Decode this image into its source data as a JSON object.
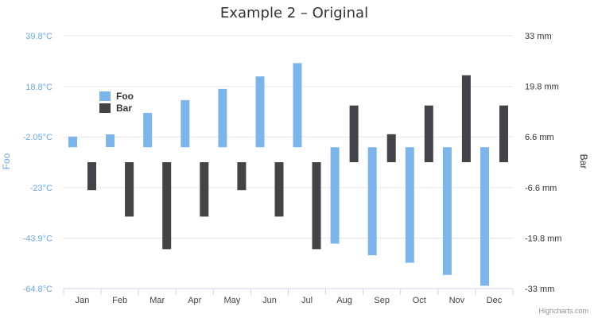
{
  "chart_data": {
    "type": "bar",
    "title": "Example 2 – Original",
    "categories": [
      "Jan",
      "Feb",
      "Mar",
      "Apr",
      "May",
      "Jun",
      "Jul",
      "Aug",
      "Sep",
      "Oct",
      "Nov",
      "Dec"
    ],
    "y_left": {
      "title": "Foo",
      "ticks": [
        "-64.8°C",
        "-43.9°C",
        "-23°C",
        "-2.05°C",
        "18.8°C",
        "39.8°C"
      ],
      "tick_values": [
        -64.8,
        -43.9,
        -23,
        -2.05,
        18.8,
        39.8
      ],
      "range": [
        -64.8,
        39.8
      ],
      "color": "#7cb5ec"
    },
    "y_right": {
      "title": "Bar",
      "ticks": [
        "-33 mm",
        "-19.8 mm",
        "-6.6 mm",
        "6.6 mm",
        "19.8 mm",
        "33 mm"
      ],
      "tick_values": [
        -33,
        -19.8,
        -6.6,
        6.6,
        19.8,
        33
      ],
      "range": [
        -33,
        33
      ],
      "color": "#434348"
    },
    "series": [
      {
        "name": "Foo",
        "axis": "left",
        "color": "#7cb5ec",
        "ranges": [
          [
            -6.3,
            -1.9
          ],
          [
            -6.3,
            -1.0
          ],
          [
            -6.3,
            7.9
          ],
          [
            -6.3,
            13.2
          ],
          [
            -6.3,
            17.8
          ],
          [
            -6.3,
            23.0
          ],
          [
            -6.3,
            28.5
          ],
          [
            -6.3,
            -46.2
          ],
          [
            -6.3,
            -51.0
          ],
          [
            -6.3,
            -54.1
          ],
          [
            -6.3,
            -59.1
          ],
          [
            -6.3,
            -63.6
          ]
        ]
      },
      {
        "name": "Bar",
        "axis": "right",
        "color": "#434348",
        "ranges": [
          [
            0,
            -7.3
          ],
          [
            0,
            -14.2
          ],
          [
            0,
            -22.7
          ],
          [
            0,
            -14.2
          ],
          [
            0,
            -7.3
          ],
          [
            0,
            -14.2
          ],
          [
            0,
            -22.7
          ],
          [
            0,
            14.8
          ],
          [
            0,
            7.3
          ],
          [
            0,
            14.8
          ],
          [
            0,
            22.7
          ],
          [
            0,
            14.8
          ]
        ]
      }
    ],
    "legend": {
      "position": "top-left, inside plot"
    },
    "grid": true,
    "credits": "Highcharts.com"
  }
}
